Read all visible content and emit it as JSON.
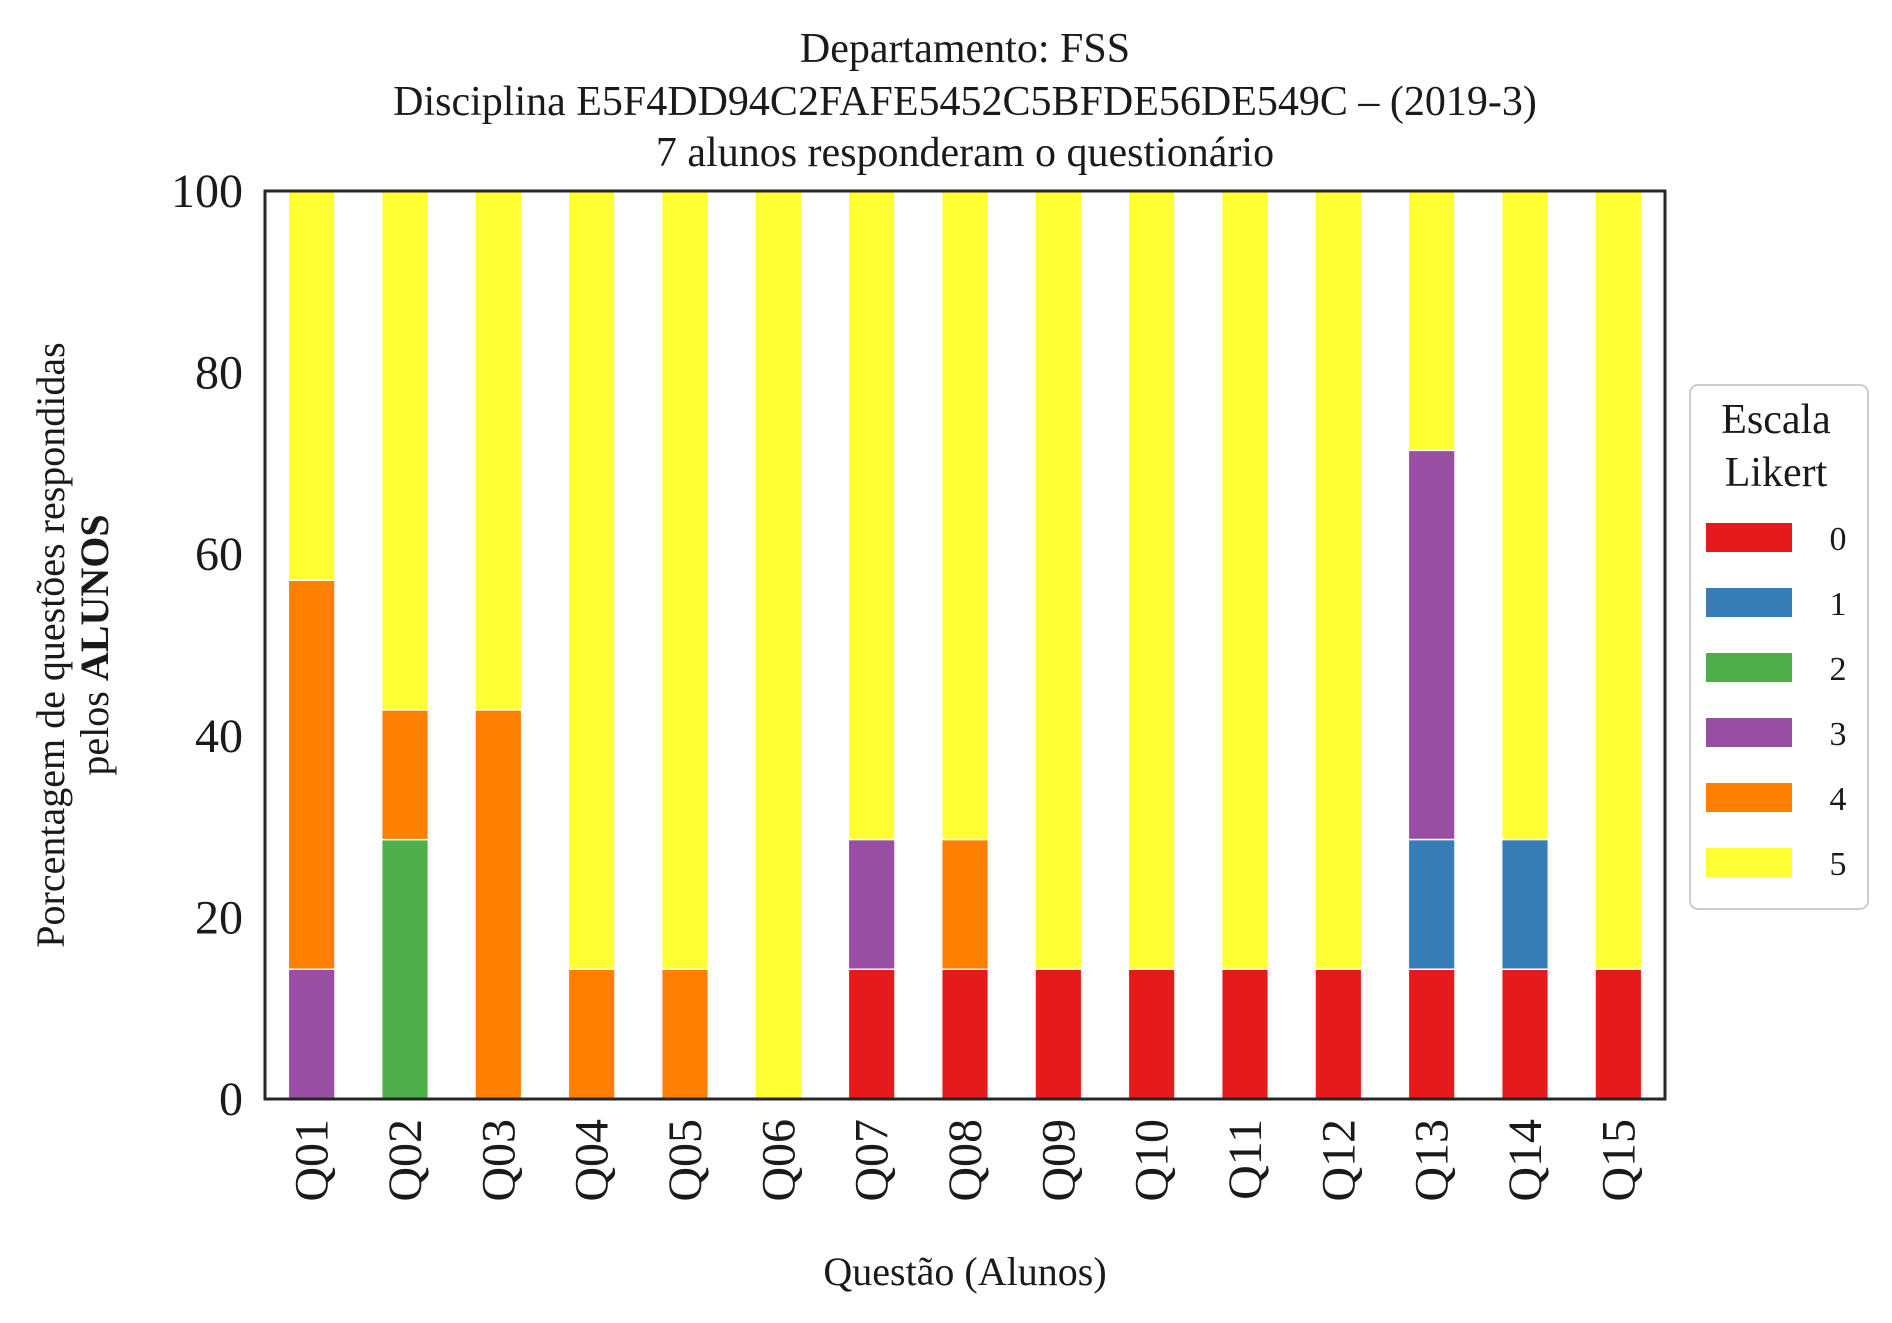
{
  "chart_data": {
    "type": "bar",
    "stacked": true,
    "title_lines": [
      "Departamento: FSS",
      "Disciplina E5F4DD94C2FAFE5452C5BFDE56DE549C – (2019-3)",
      "7 alunos responderam o questionário"
    ],
    "xlabel": "Questão (Alunos)",
    "ylabel_line1": "Porcentagem de questões respondidas",
    "ylabel_line2_normal": "pelos ",
    "ylabel_line2_bold": "ALUNOS",
    "ylim": [
      0,
      100
    ],
    "yticks": [
      0,
      20,
      40,
      60,
      80,
      100
    ],
    "grid": false,
    "categories": [
      "Q01",
      "Q02",
      "Q03",
      "Q04",
      "Q05",
      "Q06",
      "Q07",
      "Q08",
      "Q09",
      "Q10",
      "Q11",
      "Q12",
      "Q13",
      "Q14",
      "Q15"
    ],
    "legend": {
      "title_lines": [
        "Escala",
        "Likert"
      ],
      "placement": "center-right outside"
    },
    "series": [
      {
        "name": "0",
        "color": "#e41a1c",
        "values": [
          0,
          0,
          0,
          0,
          0,
          0,
          14.29,
          14.29,
          14.29,
          14.29,
          14.29,
          14.29,
          14.29,
          14.29,
          14.29
        ]
      },
      {
        "name": "1",
        "color": "#377eb8",
        "values": [
          0,
          0,
          0,
          0,
          0,
          0,
          0,
          0,
          0,
          0,
          0,
          0,
          14.29,
          14.29,
          0
        ]
      },
      {
        "name": "2",
        "color": "#4daf4a",
        "values": [
          0,
          28.57,
          0,
          0,
          0,
          0,
          0,
          0,
          0,
          0,
          0,
          0,
          0,
          0,
          0
        ]
      },
      {
        "name": "3",
        "color": "#984ea3",
        "values": [
          14.29,
          0,
          0,
          0,
          0,
          0,
          14.29,
          0,
          0,
          0,
          0,
          0,
          42.86,
          0,
          0
        ]
      },
      {
        "name": "4",
        "color": "#ff7f00",
        "values": [
          42.86,
          14.29,
          42.86,
          14.29,
          14.29,
          0,
          0,
          14.29,
          0,
          0,
          0,
          0,
          0,
          0,
          0
        ]
      },
      {
        "name": "5",
        "color": "#ffff33",
        "values": [
          42.86,
          57.14,
          57.14,
          85.71,
          85.71,
          100,
          71.43,
          71.43,
          85.71,
          85.71,
          85.71,
          85.71,
          28.57,
          71.43,
          85.71
        ]
      }
    ]
  }
}
